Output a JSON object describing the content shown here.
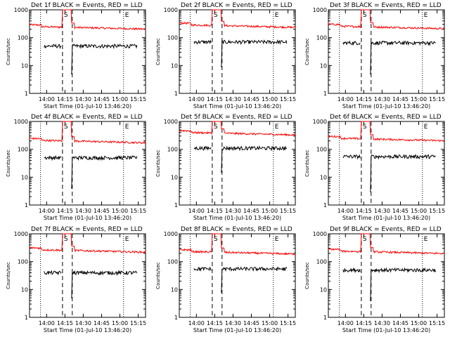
{
  "chart_data": {
    "type": "line",
    "layout": "3x3 grid",
    "shared": {
      "xlabel": "Start Time (01-Jul-10 13:46:20)",
      "ylabel": "Counts/sec",
      "yscale": "log",
      "ylim": [
        1,
        1000
      ],
      "ytick_labels": [
        "1",
        "10",
        "100",
        "1000"
      ],
      "xlim_minutes_after_1346": [
        0,
        95
      ],
      "xtick_labels": [
        "14:00",
        "14:15",
        "14:30",
        "14:45",
        "15:00",
        "15:15"
      ],
      "markers": [
        {
          "label": "S",
          "minute": 27.0,
          "style": "dashed"
        },
        {
          "label": "E",
          "minute": 77.0,
          "style": "dotted"
        },
        {
          "label": "",
          "minute": 9.0,
          "style": "dotted"
        },
        {
          "label": "",
          "minute": 35.0,
          "style": "dashed"
        }
      ],
      "legend": [
        {
          "label": "Events",
          "color": "#000000"
        },
        {
          "label": "LLD",
          "color": "#ff0000"
        }
      ],
      "colors": {
        "events": "#000000",
        "lld": "#ff0000"
      }
    },
    "panels": [
      {
        "title": "Det 1f BLACK = Events, RED = LLD",
        "lld_base": 260,
        "events_base": 50,
        "events_start_minute": 12,
        "events_dip": 5
      },
      {
        "title": "Det 2f BLACK = Events, RED = LLD",
        "lld_base": 300,
        "events_base": 70,
        "events_start_minute": 12,
        "events_dip": 9
      },
      {
        "title": "Det 3f BLACK = Events, RED = LLD",
        "lld_base": 270,
        "events_base": 65,
        "events_start_minute": 12,
        "events_dip": 5
      },
      {
        "title": "Det 4f BLACK = Events, RED = LLD",
        "lld_base": 220,
        "events_base": 50,
        "events_start_minute": 12,
        "events_dip": 4
      },
      {
        "title": "Det 5f BLACK = Events, RED = LLD",
        "lld_base": 420,
        "events_base": 110,
        "events_start_minute": 12,
        "events_dip": 15
      },
      {
        "title": "Det 6f BLACK = Events, RED = LLD",
        "lld_base": 260,
        "events_base": 55,
        "events_start_minute": 12,
        "events_dip": 3
      },
      {
        "title": "Det 7f BLACK = Events, RED = LLD",
        "lld_base": 280,
        "events_base": 40,
        "events_start_minute": 12,
        "events_dip": 5
      },
      {
        "title": "Det 8f BLACK = Events, RED = LLD",
        "lld_base": 240,
        "events_base": 55,
        "events_start_minute": 12,
        "events_dip": 8
      },
      {
        "title": "Det 9f BLACK = Events, RED = LLD",
        "lld_base": 250,
        "events_base": 50,
        "events_start_minute": 12,
        "events_dip": 4
      }
    ]
  }
}
